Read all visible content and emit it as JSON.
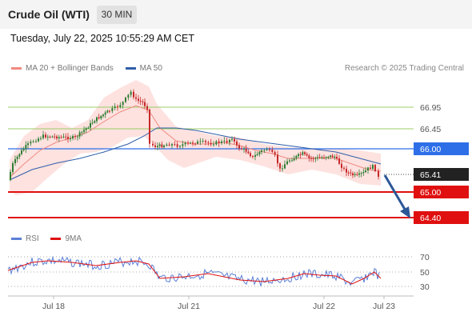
{
  "header": {
    "title": "Crude Oil (WTI)",
    "timeframe": "30 MIN"
  },
  "datetime": "Tuesday, July 22, 2025 10:55:29 AM CET",
  "legend": {
    "items": [
      {
        "label": "MA 20 + Bollinger Bands",
        "color": "#f08a80"
      },
      {
        "label": "MA 50",
        "color": "#2f5fa8"
      }
    ]
  },
  "credit": "Research © 2025 Trading Central",
  "price_levels": [
    {
      "value": "66.95",
      "color": "#7cb342",
      "style": "thin-line"
    },
    {
      "value": "66.45",
      "color": "#7cb342",
      "style": "thin-line"
    },
    {
      "value": "66.00",
      "color": "#2e6fe8",
      "style": "badge"
    },
    {
      "value": "65.41",
      "color": "#222222",
      "style": "badge-dotted"
    },
    {
      "value": "65.00",
      "color": "#e01010",
      "style": "badge"
    },
    {
      "value": "64.40",
      "color": "#e01010",
      "style": "badge"
    }
  ],
  "rsi": {
    "legend": [
      {
        "label": "RSI",
        "color": "#5a7fd6"
      },
      {
        "label": "9MA",
        "color": "#e01010"
      }
    ],
    "levels": [
      "70",
      "50",
      "30"
    ]
  },
  "x_axis": {
    "labels": [
      "Jul 18",
      "Jul 21",
      "Jul 22",
      "Jul 23"
    ]
  },
  "colors": {
    "up_candle": "#2e7d32",
    "down_candle": "#c62828",
    "bollinger_fill": "#fde2e0",
    "ma20": "#f08a80",
    "ma50": "#2f5fa8",
    "arrow": "#2b5797"
  }
}
